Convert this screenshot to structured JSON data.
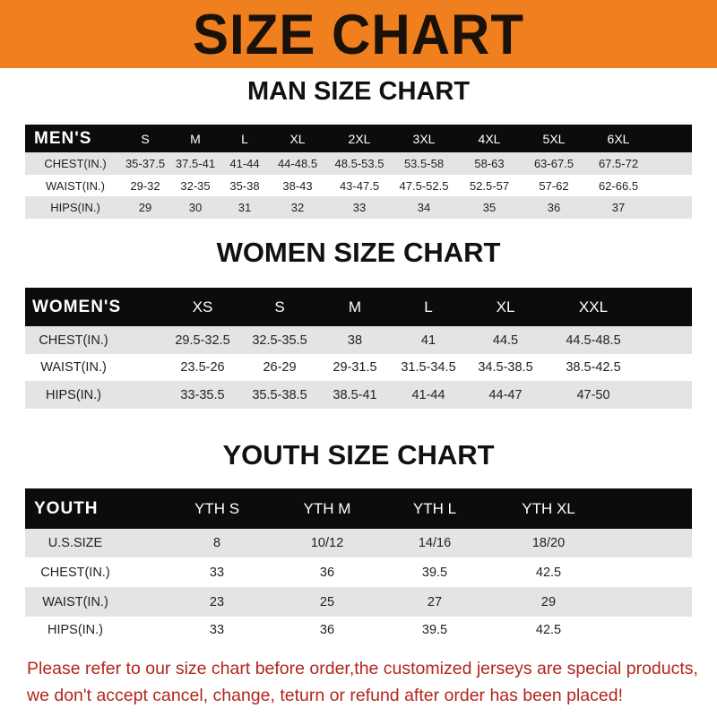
{
  "banner": {
    "title": "SIZE CHART",
    "color": "#ef7f1f"
  },
  "tables": [
    {
      "title": "MAN SIZE CHART",
      "header": [
        "MEN'S",
        "S",
        "M",
        "L",
        "XL",
        "2XL",
        "3XL",
        "4XL",
        "5XL",
        "6XL"
      ],
      "rows": [
        [
          "CHEST(IN.)",
          "35-37.5",
          "37.5-41",
          "41-44",
          "44-48.5",
          "48.5-53.5",
          "53.5-58",
          "58-63",
          "63-67.5",
          "67.5-72"
        ],
        [
          "WAIST(IN.)",
          "29-32",
          "32-35",
          "35-38",
          "38-43",
          "43-47.5",
          "47.5-52.5",
          "52.5-57",
          "57-62",
          "62-66.5"
        ],
        [
          "HIPS(IN.)",
          "29",
          "30",
          "31",
          "32",
          "33",
          "34",
          "35",
          "36",
          "37"
        ]
      ]
    },
    {
      "title": "WOMEN SIZE CHART",
      "header": [
        "WOMEN'S",
        "XS",
        "S",
        "M",
        "L",
        "XL",
        "XXL"
      ],
      "rows": [
        [
          "CHEST(IN.)",
          "29.5-32.5",
          "32.5-35.5",
          "38",
          "41",
          "44.5",
          "44.5-48.5"
        ],
        [
          "WAIST(IN.)",
          "23.5-26",
          "26-29",
          "29-31.5",
          "31.5-34.5",
          "34.5-38.5",
          "38.5-42.5"
        ],
        [
          "HIPS(IN.)",
          "33-35.5",
          "35.5-38.5",
          "38.5-41",
          "41-44",
          "44-47",
          "47-50"
        ]
      ]
    },
    {
      "title": "YOUTH SIZE CHART",
      "header": [
        "YOUTH",
        "YTH S",
        "YTH M",
        "YTH L",
        "YTH XL"
      ],
      "rows": [
        [
          "U.S.SIZE",
          "8",
          "10/12",
          "14/16",
          "18/20"
        ],
        [
          "CHEST(IN.)",
          "33",
          "36",
          "39.5",
          "42.5"
        ],
        [
          "WAIST(IN.)",
          "23",
          "25",
          "27",
          "29"
        ],
        [
          "HIPS(IN.)",
          "33",
          "36",
          "39.5",
          "42.5"
        ]
      ]
    }
  ],
  "notice": [
    "Please refer to our size chart before order,the customized jerseys are special products,",
    "we don't accept cancel, change, teturn or refund after order has been placed!"
  ],
  "notice_color": "#b3261e"
}
